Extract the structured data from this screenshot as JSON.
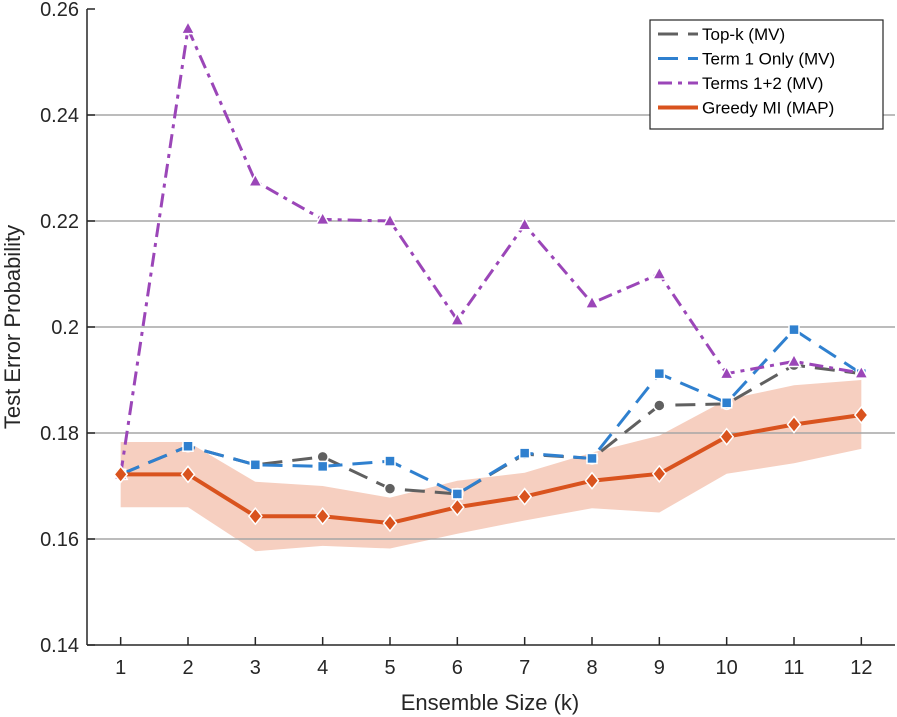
{
  "chart_data": {
    "type": "line",
    "title": "",
    "xlabel": "Ensemble Size (k)",
    "ylabel": "Test Error Probability",
    "xlim": [
      0.5,
      12.5
    ],
    "ylim": [
      0.14,
      0.26
    ],
    "x": [
      1,
      2,
      3,
      4,
      5,
      6,
      7,
      8,
      9,
      10,
      11,
      12
    ],
    "x_tick_labels": [
      "1",
      "2",
      "3",
      "4",
      "5",
      "6",
      "7",
      "8",
      "9",
      "10",
      "11",
      "12"
    ],
    "y_ticks": [
      0.14,
      0.16,
      0.18,
      0.2,
      0.22,
      0.24,
      0.26
    ],
    "y_tick_labels": [
      "0.14",
      "0.16",
      "0.18",
      "0.2",
      "0.22",
      "0.24",
      "0.26"
    ],
    "grid": "horizontal",
    "legend_position": "top-right",
    "series": [
      {
        "name": "Top-k (MV)",
        "color": "#606060",
        "dash": "long-dash",
        "marker": "circle",
        "values": [
          0.1722,
          0.1775,
          0.174,
          0.1755,
          0.1695,
          0.1685,
          0.176,
          0.1752,
          0.1852,
          0.1855,
          0.1928,
          0.1912
        ]
      },
      {
        "name": "Term 1 Only (MV)",
        "color": "#2f80cf",
        "dash": "long-dash",
        "marker": "square",
        "values": [
          0.1722,
          0.1775,
          0.174,
          0.1737,
          0.1747,
          0.1685,
          0.1762,
          0.1752,
          0.1912,
          0.1857,
          0.1995,
          0.1912
        ]
      },
      {
        "name": "Terms 1+2 (MV)",
        "color": "#9b46b8",
        "dash": "dash-dot",
        "marker": "triangle",
        "values": [
          0.1722,
          0.2563,
          0.2275,
          0.2203,
          0.22,
          0.2013,
          0.2193,
          0.2045,
          0.21,
          0.1912,
          0.1935,
          0.1913
        ]
      },
      {
        "name": "Greedy MI (MAP)",
        "color": "#d9531e",
        "dash": "solid",
        "marker": "diamond",
        "values": [
          0.1722,
          0.1722,
          0.1643,
          0.1643,
          0.163,
          0.166,
          0.168,
          0.171,
          0.1723,
          0.1793,
          0.1816,
          0.1834
        ],
        "band_color": "#f6cfc0",
        "band_lower": [
          0.166,
          0.166,
          0.1577,
          0.1587,
          0.1582,
          0.161,
          0.1635,
          0.1658,
          0.165,
          0.1723,
          0.1743,
          0.177
        ],
        "band_upper": [
          0.1783,
          0.1783,
          0.1708,
          0.17,
          0.1678,
          0.171,
          0.1725,
          0.1763,
          0.1795,
          0.1863,
          0.189,
          0.19
        ]
      }
    ]
  }
}
